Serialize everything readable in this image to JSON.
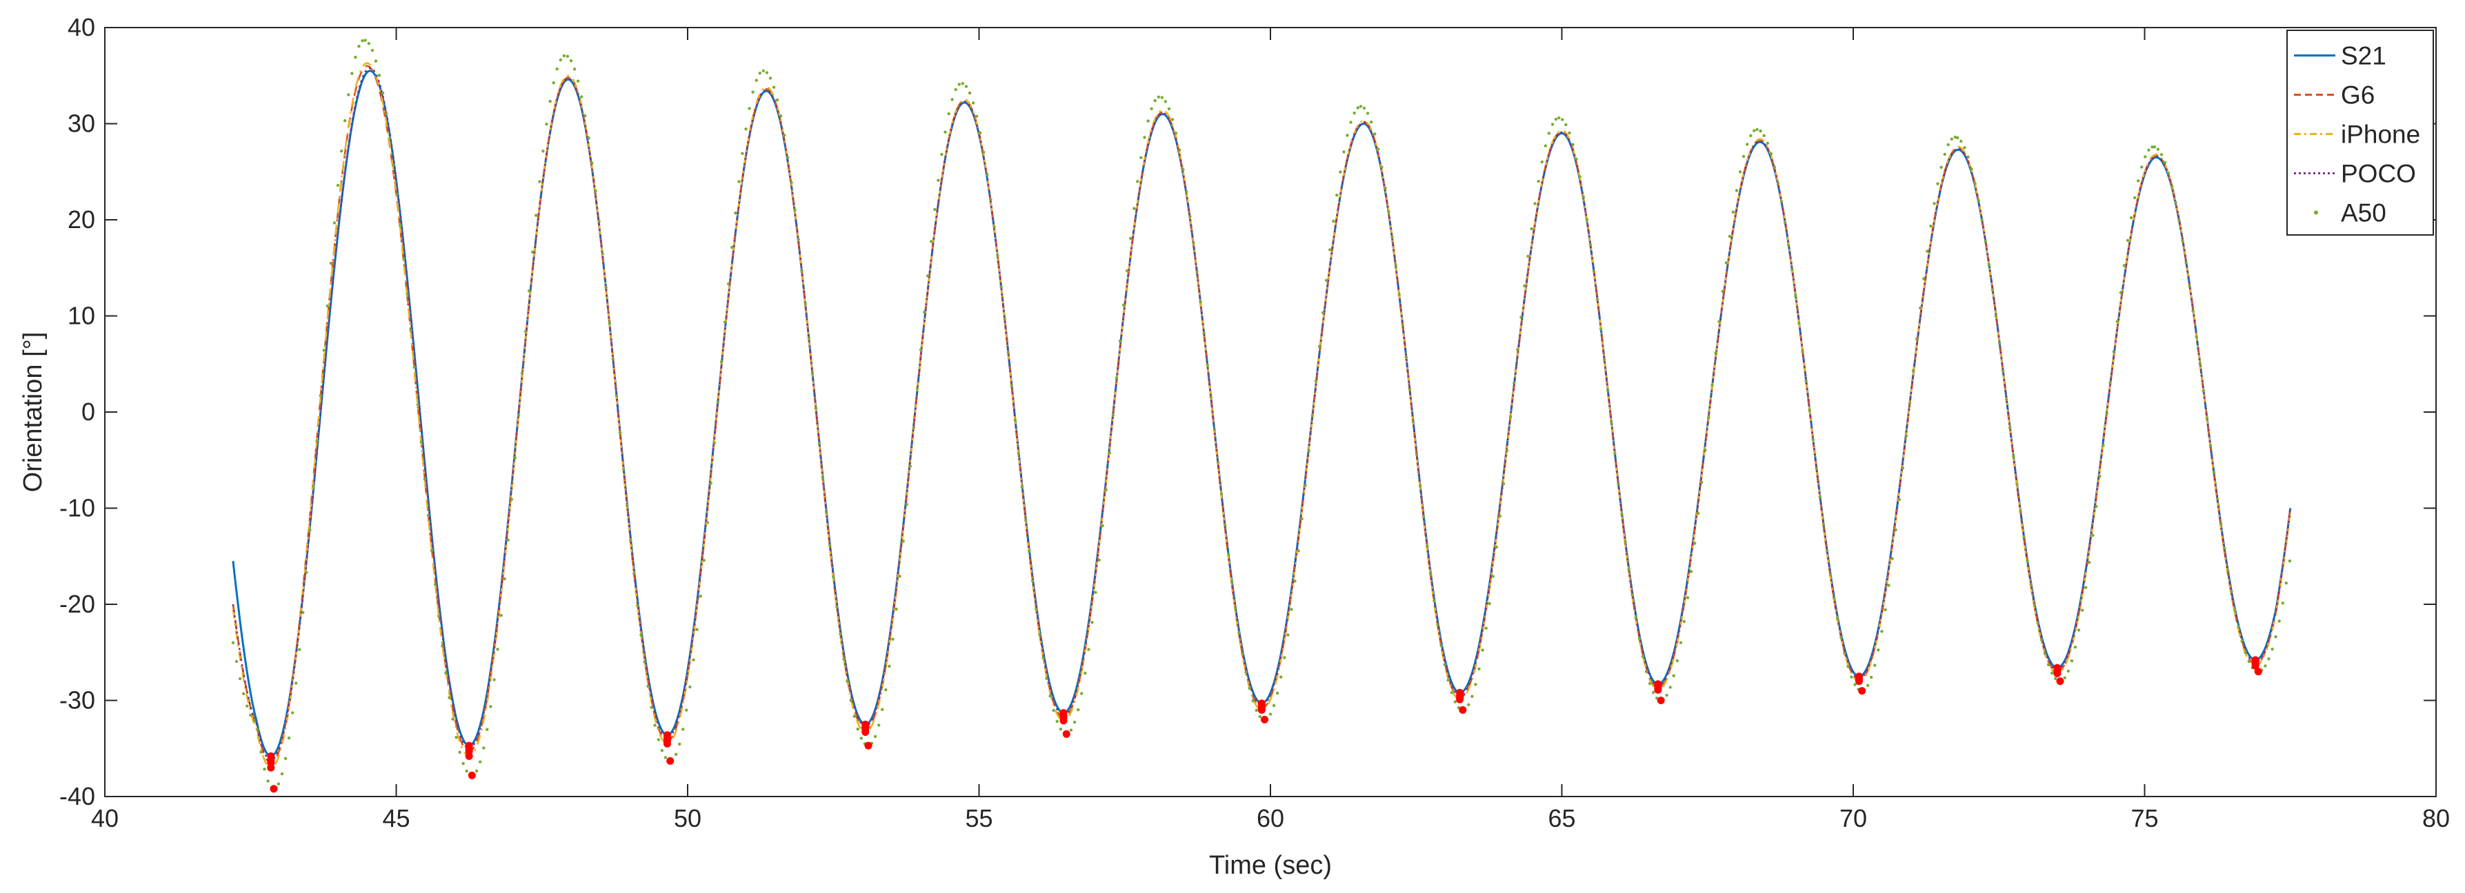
{
  "chart_data": {
    "type": "line",
    "title": "",
    "xlabel": "Time (sec)",
    "ylabel": "Orientation [°]",
    "xlim": [
      40,
      80
    ],
    "ylim": [
      -40,
      40
    ],
    "xticks": [
      40,
      45,
      50,
      55,
      60,
      65,
      70,
      75,
      80
    ],
    "yticks": [
      -40,
      -30,
      -20,
      -10,
      0,
      10,
      20,
      30,
      40
    ],
    "grid": false,
    "legend_position": "top-right",
    "time_range": [
      42.2,
      77.5
    ],
    "series": [
      {
        "name": "S21",
        "color": "#0072BD",
        "style": "solid",
        "start_value": -15.5,
        "peaks": [
          [
            44.55,
            35.5
          ],
          [
            47.95,
            34.6
          ],
          [
            51.35,
            33.4
          ],
          [
            54.75,
            32.2
          ],
          [
            58.15,
            31.0
          ],
          [
            61.6,
            30.0
          ],
          [
            65.0,
            29.0
          ],
          [
            68.4,
            28.1
          ],
          [
            71.8,
            27.3
          ],
          [
            75.2,
            26.5
          ]
        ],
        "troughs": [
          [
            42.85,
            -35.8
          ],
          [
            46.25,
            -34.7
          ],
          [
            49.65,
            -33.6
          ],
          [
            53.05,
            -32.5
          ],
          [
            56.45,
            -31.3
          ],
          [
            59.85,
            -30.3
          ],
          [
            63.25,
            -29.2
          ],
          [
            66.65,
            -28.3
          ],
          [
            70.1,
            -27.5
          ],
          [
            73.5,
            -26.6
          ],
          [
            76.9,
            -25.8
          ]
        ],
        "end_value": -10.0
      },
      {
        "name": "G6",
        "color": "#D95319",
        "style": "dashed",
        "start_value": -20.0,
        "peaks": [
          [
            44.5,
            36.0
          ],
          [
            47.95,
            34.8
          ],
          [
            51.35,
            33.6
          ],
          [
            54.75,
            32.4
          ],
          [
            58.15,
            31.2
          ],
          [
            61.6,
            30.2
          ],
          [
            65.0,
            29.2
          ],
          [
            68.4,
            28.3
          ],
          [
            71.8,
            27.5
          ],
          [
            75.2,
            26.7
          ]
        ],
        "troughs": [
          [
            42.85,
            -36.5
          ],
          [
            46.25,
            -35.3
          ],
          [
            49.65,
            -34.2
          ],
          [
            53.05,
            -33.0
          ],
          [
            56.45,
            -31.8
          ],
          [
            59.85,
            -30.8
          ],
          [
            63.25,
            -29.7
          ],
          [
            66.65,
            -28.7
          ],
          [
            70.1,
            -27.9
          ],
          [
            73.5,
            -27.0
          ],
          [
            76.9,
            -26.2
          ]
        ],
        "end_value": -10.0
      },
      {
        "name": "iPhone",
        "color": "#EDB120",
        "style": "dashdot",
        "start_value": -20.5,
        "peaks": [
          [
            44.5,
            36.3
          ],
          [
            47.95,
            35.0
          ],
          [
            51.35,
            33.8
          ],
          [
            54.75,
            32.5
          ],
          [
            58.15,
            31.4
          ],
          [
            61.6,
            30.3
          ],
          [
            65.0,
            29.3
          ],
          [
            68.4,
            28.4
          ],
          [
            71.8,
            27.6
          ],
          [
            75.2,
            26.8
          ]
        ],
        "troughs": [
          [
            42.85,
            -37.0
          ],
          [
            46.25,
            -35.8
          ],
          [
            49.65,
            -34.5
          ],
          [
            53.05,
            -33.3
          ],
          [
            56.45,
            -32.1
          ],
          [
            59.85,
            -31.0
          ],
          [
            63.25,
            -29.9
          ],
          [
            66.65,
            -28.9
          ],
          [
            70.1,
            -28.0
          ],
          [
            73.5,
            -27.2
          ],
          [
            76.9,
            -26.4
          ]
        ],
        "end_value": -10.5
      },
      {
        "name": "POCO",
        "color": "#7E2F8E",
        "style": "dotted",
        "start_value": -20.0,
        "peaks": [
          [
            44.55,
            35.8
          ],
          [
            47.95,
            34.7
          ],
          [
            51.35,
            33.5
          ],
          [
            54.75,
            32.3
          ],
          [
            58.15,
            31.1
          ],
          [
            61.6,
            30.1
          ],
          [
            65.0,
            29.1
          ],
          [
            68.4,
            28.2
          ],
          [
            71.8,
            27.4
          ],
          [
            75.2,
            26.6
          ]
        ],
        "troughs": [
          [
            42.85,
            -36.2
          ],
          [
            46.25,
            -35.0
          ],
          [
            49.65,
            -33.9
          ],
          [
            53.05,
            -32.7
          ],
          [
            56.45,
            -31.6
          ],
          [
            59.85,
            -30.5
          ],
          [
            63.25,
            -29.5
          ],
          [
            66.65,
            -28.5
          ],
          [
            70.1,
            -27.7
          ],
          [
            73.5,
            -26.8
          ],
          [
            76.9,
            -26.0
          ]
        ],
        "end_value": -10.0
      },
      {
        "name": "A50",
        "color": "#77AC30",
        "style": "points",
        "start_value": -24.0,
        "peaks": [
          [
            44.45,
            38.7
          ],
          [
            47.9,
            37.1
          ],
          [
            51.3,
            35.5
          ],
          [
            54.7,
            34.2
          ],
          [
            58.1,
            32.8
          ],
          [
            61.55,
            31.8
          ],
          [
            64.95,
            30.6
          ],
          [
            68.35,
            29.4
          ],
          [
            71.75,
            28.6
          ],
          [
            75.15,
            27.6
          ]
        ],
        "troughs": [
          [
            42.9,
            -39.2
          ],
          [
            46.3,
            -37.8
          ],
          [
            49.7,
            -36.3
          ],
          [
            53.1,
            -34.7
          ],
          [
            56.5,
            -33.5
          ],
          [
            59.9,
            -32.0
          ],
          [
            63.3,
            -31.0
          ],
          [
            66.7,
            -30.0
          ],
          [
            70.15,
            -29.0
          ],
          [
            73.55,
            -28.0
          ],
          [
            76.95,
            -27.0
          ]
        ],
        "end_value": -15.5
      }
    ],
    "trough_marker_color": "#FF0000"
  }
}
